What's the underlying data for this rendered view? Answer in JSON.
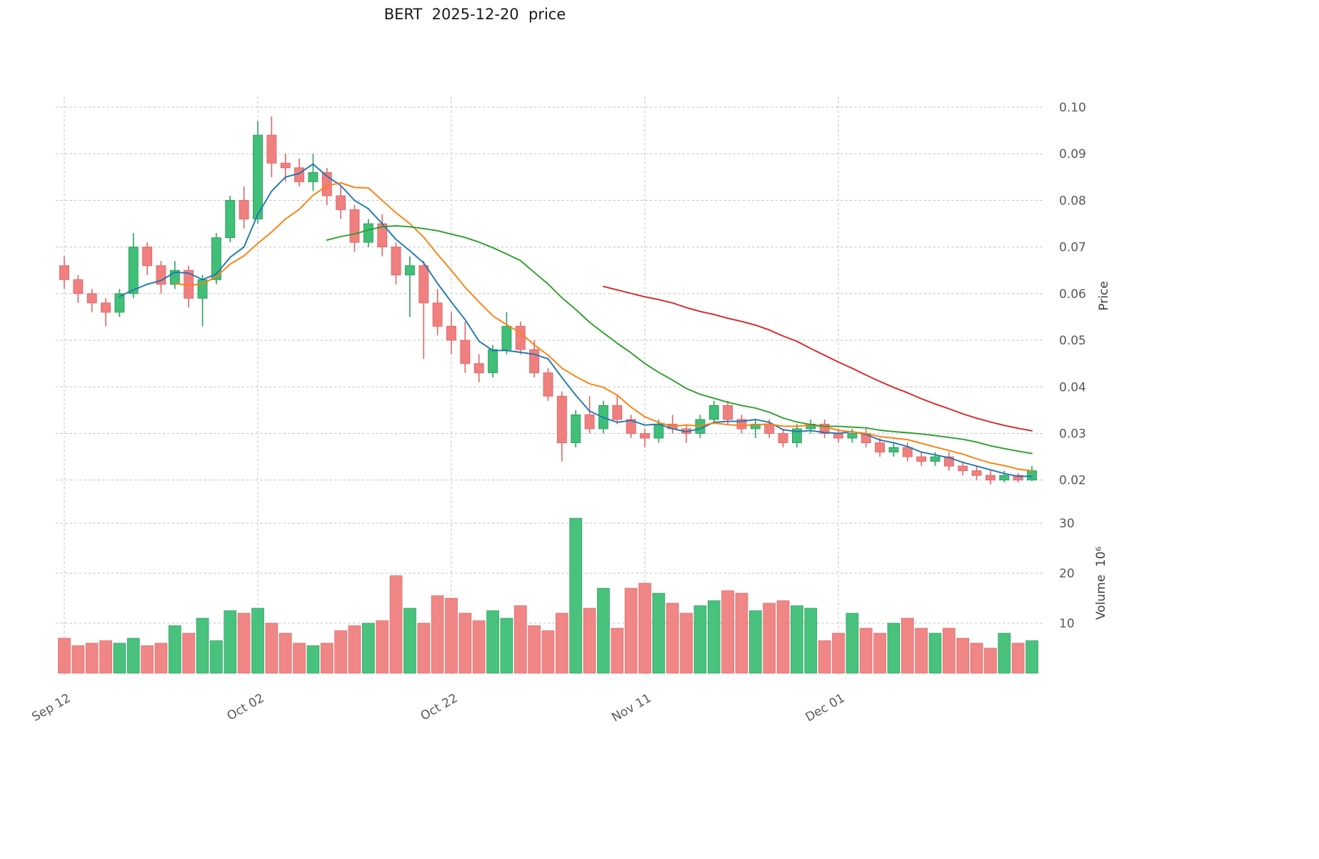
{
  "chart_data": {
    "type": "candlestick+volume",
    "title": "BERT  2025-12-20  price",
    "ylabel_price": "Price",
    "ylabel_volume": "Volume  10⁶",
    "x_tick_labels": [
      "Sep 12",
      "Oct 02",
      "Oct 22",
      "Nov 11",
      "Dec 01"
    ],
    "x_tick_indices": [
      0,
      14,
      28,
      42,
      56
    ],
    "price_ticks": [
      0.02,
      0.03,
      0.04,
      0.05,
      0.06,
      0.07,
      0.08,
      0.09,
      0.1
    ],
    "volume_ticks": [
      10,
      20,
      30
    ],
    "price_ylim": [
      0.0172,
      0.1023
    ],
    "volume_ylim": [
      0,
      34.6
    ],
    "grid": true,
    "legend_position": "none",
    "colors": {
      "up": "#3fbf77",
      "up_edge": "#2f9e60",
      "down": "#f08080",
      "down_edge": "#e06565",
      "grid": "#c4c4c4",
      "tick_text": "#595959",
      "title_text": "#1a1a1a"
    },
    "mav": [
      {
        "name": "MA5",
        "period": 5,
        "color": "#1f77b4"
      },
      {
        "name": "MA9",
        "period": 9,
        "color": "#ff7f0e"
      },
      {
        "name": "MA20",
        "period": 20,
        "color": "#2ca02c"
      },
      {
        "name": "MA40",
        "period": 40,
        "color": "#d62728"
      }
    ],
    "dates": [
      "2025-09-12",
      "2025-09-15",
      "2025-09-16",
      "2025-09-17",
      "2025-09-18",
      "2025-09-19",
      "2025-09-22",
      "2025-09-23",
      "2025-09-24",
      "2025-09-25",
      "2025-09-26",
      "2025-09-29",
      "2025-09-30",
      "2025-10-01",
      "2025-10-02",
      "2025-10-03",
      "2025-10-06",
      "2025-10-07",
      "2025-10-08",
      "2025-10-09",
      "2025-10-10",
      "2025-10-13",
      "2025-10-14",
      "2025-10-15",
      "2025-10-16",
      "2025-10-17",
      "2025-10-20",
      "2025-10-21",
      "2025-10-22",
      "2025-10-23",
      "2025-10-24",
      "2025-10-27",
      "2025-10-28",
      "2025-10-29",
      "2025-10-30",
      "2025-10-31",
      "2025-11-03",
      "2025-11-04",
      "2025-11-05",
      "2025-11-06",
      "2025-11-07",
      "2025-11-10",
      "2025-11-11",
      "2025-11-12",
      "2025-11-13",
      "2025-11-14",
      "2025-11-17",
      "2025-11-18",
      "2025-11-19",
      "2025-11-20",
      "2025-11-21",
      "2025-11-24",
      "2025-11-25",
      "2025-11-26",
      "2025-11-27",
      "2025-11-28",
      "2025-12-01",
      "2025-12-02",
      "2025-12-03",
      "2025-12-04",
      "2025-12-05",
      "2025-12-08",
      "2025-12-09",
      "2025-12-10",
      "2025-12-11",
      "2025-12-12",
      "2025-12-15",
      "2025-12-16",
      "2025-12-17",
      "2025-12-18",
      "2025-12-19"
    ],
    "open": [
      0.066,
      0.063,
      0.06,
      0.058,
      0.056,
      0.06,
      0.07,
      0.066,
      0.062,
      0.065,
      0.059,
      0.063,
      0.072,
      0.08,
      0.076,
      0.094,
      0.088,
      0.087,
      0.084,
      0.086,
      0.081,
      0.078,
      0.071,
      0.075,
      0.07,
      0.064,
      0.066,
      0.058,
      0.053,
      0.05,
      0.045,
      0.043,
      0.048,
      0.053,
      0.048,
      0.043,
      0.038,
      0.028,
      0.034,
      0.031,
      0.036,
      0.033,
      0.03,
      0.029,
      0.032,
      0.031,
      0.03,
      0.033,
      0.036,
      0.033,
      0.031,
      0.032,
      0.03,
      0.028,
      0.031,
      0.032,
      0.03,
      0.029,
      0.03,
      0.028,
      0.026,
      0.027,
      0.025,
      0.024,
      0.025,
      0.023,
      0.022,
      0.021,
      0.02,
      0.021,
      0.02
    ],
    "high": [
      0.068,
      0.064,
      0.061,
      0.059,
      0.061,
      0.073,
      0.071,
      0.067,
      0.067,
      0.066,
      0.064,
      0.073,
      0.081,
      0.083,
      0.097,
      0.098,
      0.09,
      0.089,
      0.09,
      0.087,
      0.083,
      0.079,
      0.076,
      0.077,
      0.071,
      0.068,
      0.067,
      0.061,
      0.056,
      0.054,
      0.047,
      0.049,
      0.056,
      0.054,
      0.05,
      0.044,
      0.039,
      0.035,
      0.038,
      0.037,
      0.038,
      0.034,
      0.031,
      0.033,
      0.034,
      0.032,
      0.034,
      0.037,
      0.037,
      0.034,
      0.033,
      0.033,
      0.031,
      0.032,
      0.033,
      0.033,
      0.031,
      0.031,
      0.031,
      0.029,
      0.028,
      0.028,
      0.026,
      0.026,
      0.026,
      0.024,
      0.023,
      0.022,
      0.022,
      0.0215,
      0.023
    ],
    "low": [
      0.061,
      0.058,
      0.056,
      0.053,
      0.055,
      0.059,
      0.064,
      0.06,
      0.061,
      0.057,
      0.053,
      0.062,
      0.071,
      0.074,
      0.075,
      0.085,
      0.084,
      0.083,
      0.082,
      0.079,
      0.076,
      0.069,
      0.07,
      0.068,
      0.062,
      0.055,
      0.046,
      0.051,
      0.047,
      0.043,
      0.041,
      0.042,
      0.047,
      0.047,
      0.042,
      0.037,
      0.024,
      0.027,
      0.03,
      0.03,
      0.032,
      0.029,
      0.027,
      0.028,
      0.03,
      0.028,
      0.029,
      0.032,
      0.032,
      0.03,
      0.029,
      0.029,
      0.027,
      0.027,
      0.03,
      0.029,
      0.028,
      0.028,
      0.027,
      0.025,
      0.025,
      0.024,
      0.023,
      0.023,
      0.022,
      0.021,
      0.02,
      0.019,
      0.0195,
      0.0195,
      0.0198
    ],
    "close": [
      0.063,
      0.06,
      0.058,
      0.056,
      0.06,
      0.07,
      0.066,
      0.062,
      0.065,
      0.059,
      0.063,
      0.072,
      0.08,
      0.076,
      0.094,
      0.088,
      0.087,
      0.084,
      0.086,
      0.081,
      0.078,
      0.071,
      0.075,
      0.07,
      0.064,
      0.066,
      0.058,
      0.053,
      0.05,
      0.045,
      0.043,
      0.048,
      0.053,
      0.048,
      0.043,
      0.038,
      0.028,
      0.034,
      0.031,
      0.036,
      0.033,
      0.03,
      0.029,
      0.032,
      0.031,
      0.03,
      0.033,
      0.036,
      0.033,
      0.031,
      0.032,
      0.03,
      0.028,
      0.031,
      0.032,
      0.03,
      0.029,
      0.03,
      0.028,
      0.026,
      0.027,
      0.025,
      0.024,
      0.025,
      0.023,
      0.022,
      0.021,
      0.02,
      0.021,
      0.02,
      0.022
    ],
    "volume_millions": [
      7.0,
      5.5,
      6.0,
      6.5,
      6.0,
      7.0,
      5.5,
      6.0,
      9.5,
      8.0,
      11.0,
      6.5,
      12.5,
      12.0,
      13.0,
      10.0,
      8.0,
      6.0,
      5.5,
      6.0,
      8.5,
      9.5,
      10.0,
      10.5,
      19.5,
      13.0,
      10.0,
      15.5,
      15.0,
      12.0,
      10.5,
      12.5,
      11.0,
      13.5,
      9.5,
      8.5,
      12.0,
      31.0,
      13.0,
      17.0,
      9.0,
      17.0,
      18.0,
      16.0,
      14.0,
      12.0,
      13.5,
      14.5,
      16.5,
      16.0,
      12.5,
      14.0,
      14.5,
      13.5,
      13.0,
      6.5,
      8.0,
      12.0,
      9.0,
      8.0,
      10.0,
      11.0,
      9.0,
      8.0,
      9.0,
      7.0,
      6.0,
      5.0,
      8.0,
      6.0,
      6.5
    ]
  }
}
